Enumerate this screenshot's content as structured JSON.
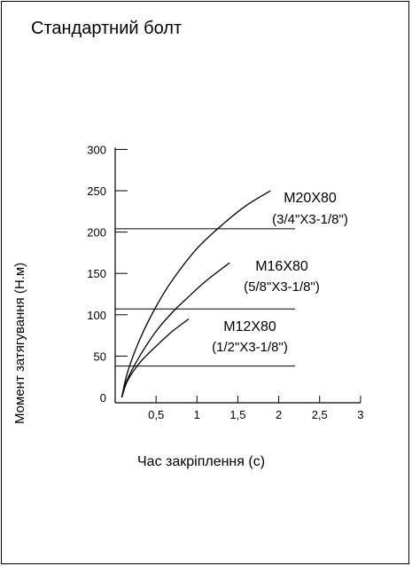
{
  "chart_data": {
    "type": "line",
    "title": "Стандартний болт",
    "xlabel": "Час закріплення (с)",
    "ylabel": "Момент затягування (Н.м)",
    "xlim": [
      0,
      3
    ],
    "ylim": [
      0,
      300
    ],
    "x_ticks": [
      "0,5",
      "1",
      "1,5",
      "2",
      "2,5",
      "3"
    ],
    "x_tick_values": [
      0.5,
      1,
      1.5,
      2,
      2.5,
      3
    ],
    "y_ticks": [
      "0",
      "50",
      "100",
      "150",
      "200",
      "250",
      "300"
    ],
    "y_tick_values": [
      0,
      50,
      100,
      150,
      200,
      250,
      300
    ],
    "grid": false,
    "reference_lines_y": [
      38,
      107,
      204
    ],
    "reference_line_x_end": 2.2,
    "series": [
      {
        "name": "M20X80",
        "subname": "(3/4\"X3-1/8\")",
        "x": [
          0.08,
          0.15,
          0.3,
          0.5,
          0.7,
          1.0,
          1.3,
          1.6,
          1.9
        ],
        "y": [
          0,
          30,
          70,
          110,
          142,
          180,
          208,
          232,
          250
        ]
      },
      {
        "name": "M16X80",
        "subname": "(5/8\"X3-1/8\")",
        "x": [
          0.08,
          0.15,
          0.3,
          0.5,
          0.7,
          0.9,
          1.1,
          1.4
        ],
        "y": [
          0,
          22,
          50,
          80,
          103,
          122,
          140,
          163
        ]
      },
      {
        "name": "M12X80",
        "subname": "(1/2\"X3-1/8\")",
        "x": [
          0.08,
          0.15,
          0.3,
          0.5,
          0.7,
          0.9
        ],
        "y": [
          0,
          20,
          42,
          62,
          80,
          95
        ]
      }
    ],
    "colors": {
      "line": "#000000",
      "background": "#ffffff"
    }
  }
}
